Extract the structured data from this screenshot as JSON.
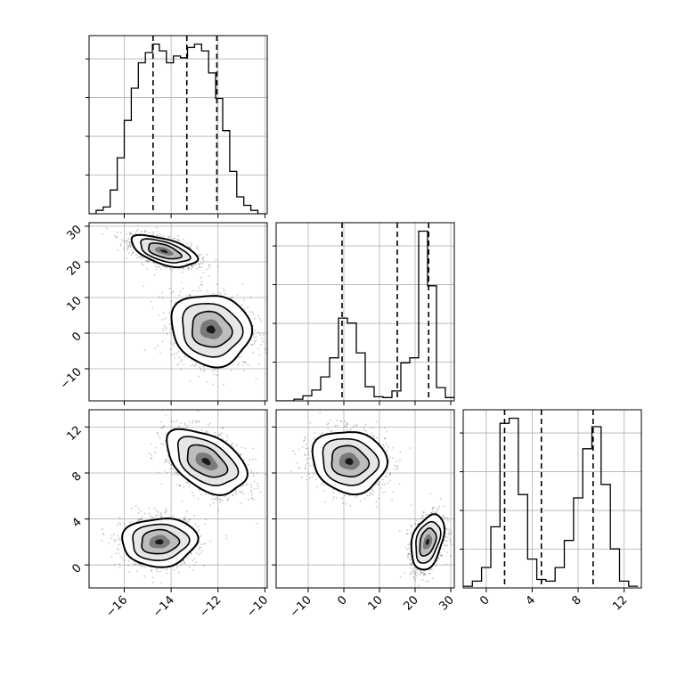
{
  "chart_data": {
    "type": "corner",
    "grid": true,
    "parameters": [
      {
        "range": [
          -17.5,
          -9.9
        ],
        "ticks": [
          -16,
          -14,
          -12,
          -10
        ],
        "tick_labels": [
          "−16",
          "−14",
          "−12",
          "−10"
        ]
      },
      {
        "range": [
          -19,
          31
        ],
        "ticks": [
          -10,
          0,
          10,
          20,
          30
        ],
        "tick_labels": [
          "−10",
          "0",
          "10",
          "20",
          "30"
        ]
      },
      {
        "range": [
          -2,
          13.5
        ],
        "ticks": [
          0,
          4,
          8,
          12
        ],
        "tick_labels": [
          "0",
          "4",
          "8",
          "12"
        ]
      }
    ],
    "histograms": [
      {
        "param": 0,
        "bin_edges": [
          -17.5,
          -17.2,
          -16.9,
          -16.6,
          -16.3,
          -16.0,
          -15.7,
          -15.4,
          -15.1,
          -14.8,
          -14.5,
          -14.2,
          -13.9,
          -13.6,
          -13.3,
          -13.0,
          -12.7,
          -12.4,
          -12.1,
          -11.8,
          -11.5,
          -11.2,
          -10.9,
          -10.6,
          -10.3,
          -10.0
        ],
        "counts": [
          0.0,
          0.02,
          0.04,
          0.14,
          0.33,
          0.55,
          0.74,
          0.89,
          0.95,
          1.0,
          0.96,
          0.89,
          0.93,
          0.92,
          0.98,
          1.0,
          0.96,
          0.83,
          0.68,
          0.49,
          0.25,
          0.1,
          0.05,
          0.02,
          0.0
        ],
        "quantiles": [
          -14.77,
          -13.33,
          -12.05
        ]
      },
      {
        "param": 1,
        "bin_edges": [
          -19,
          -16.5,
          -14,
          -11.5,
          -9,
          -6.5,
          -4,
          -1.5,
          1,
          3.5,
          6,
          8.5,
          11,
          13.5,
          16,
          18.5,
          21,
          23.5,
          26,
          28.5,
          31
        ],
        "counts": [
          0.0,
          0.0,
          0.02,
          0.06,
          0.13,
          0.29,
          0.52,
          1.0,
          0.94,
          0.58,
          0.17,
          0.05,
          0.04,
          0.12,
          0.46,
          0.52,
          2.05,
          1.39,
          0.16,
          0.04
        ],
        "quantiles": [
          -0.5,
          15.0,
          23.8
        ]
      },
      {
        "param": 2,
        "bin_edges": [
          -2.0,
          -1.2,
          -0.4,
          0.4,
          1.2,
          2.0,
          2.8,
          3.6,
          4.4,
          5.2,
          6.0,
          6.8,
          7.6,
          8.4,
          9.2,
          10.0,
          10.8,
          11.6,
          12.4,
          13.2
        ],
        "counts": [
          0.01,
          0.04,
          0.12,
          0.36,
          0.97,
          1.0,
          0.55,
          0.17,
          0.05,
          0.04,
          0.12,
          0.28,
          0.53,
          0.82,
          0.95,
          0.61,
          0.23,
          0.04,
          0.01
        ],
        "quantiles": [
          1.6,
          4.8,
          9.3
        ]
      }
    ],
    "scatter_2d": [
      {
        "x_param": 0,
        "y_param": 1,
        "clusters": [
          {
            "center": [
              -14.3,
              23.0
            ],
            "std": [
              0.7,
              2.2
            ],
            "corr": -0.55
          },
          {
            "center": [
              -12.3,
              1.0
            ],
            "std": [
              0.85,
              5.0
            ],
            "corr": -0.1
          }
        ]
      },
      {
        "x_param": 0,
        "y_param": 2,
        "clusters": [
          {
            "center": [
              -12.5,
              9.0
            ],
            "std": [
              0.85,
              1.4
            ],
            "corr": -0.45
          },
          {
            "center": [
              -14.5,
              2.0
            ],
            "std": [
              0.8,
              1.05
            ],
            "corr": 0.05
          }
        ]
      },
      {
        "x_param": 1,
        "y_param": 2,
        "clusters": [
          {
            "center": [
              1.5,
              9.0
            ],
            "std": [
              5.2,
              1.35
            ],
            "corr": -0.1
          },
          {
            "center": [
              23.5,
              2.0
            ],
            "std": [
              2.3,
              1.2
            ],
            "corr": 0.35
          }
        ]
      }
    ]
  },
  "colors": {
    "axis": "#000000",
    "grid": "#b0b0b0",
    "contour": "#000000",
    "scatter": "#000000"
  }
}
